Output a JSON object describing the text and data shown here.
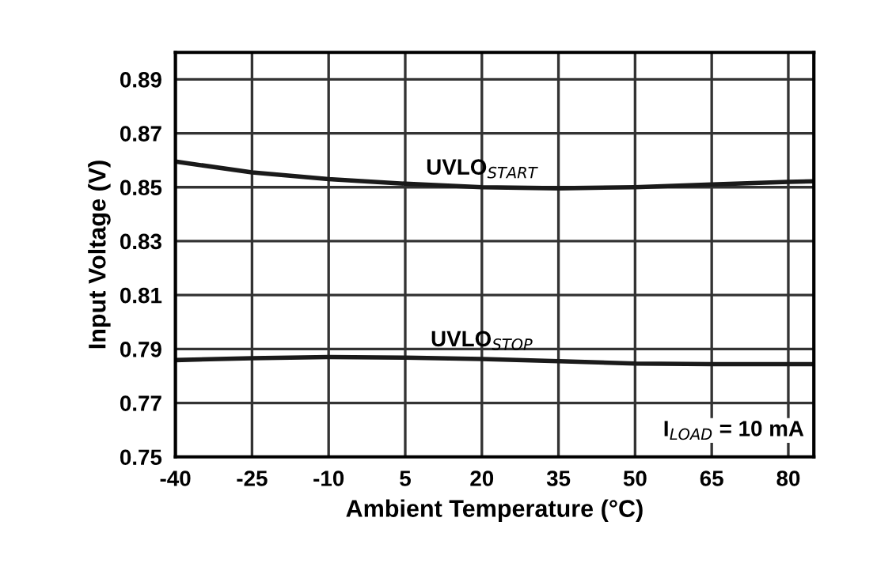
{
  "chart_data": {
    "type": "line",
    "xlabel": "Ambient Temperature (°C)",
    "ylabel": "Input Voltage (V)",
    "x": [
      -40,
      -25,
      -10,
      5,
      20,
      35,
      50,
      65,
      80,
      85
    ],
    "series": [
      {
        "name": "UVLO$_{START}$",
        "color": "#1a1a1a",
        "values": [
          0.8595,
          0.8555,
          0.853,
          0.8513,
          0.85,
          0.8496,
          0.85,
          0.851,
          0.852,
          0.8522
        ]
      },
      {
        "name": "UVLO$_{STOP}$",
        "color": "#1a1a1a",
        "values": [
          0.7859,
          0.7866,
          0.787,
          0.7868,
          0.7863,
          0.7855,
          0.7846,
          0.7844,
          0.7844,
          0.7844
        ]
      }
    ],
    "xlim": [
      -40,
      85
    ],
    "xticks": [
      -40,
      -25,
      -10,
      5,
      20,
      35,
      50,
      65,
      80
    ],
    "ylim": [
      0.75,
      0.9
    ],
    "yticks": [
      0.75,
      0.77,
      0.79,
      0.81,
      0.83,
      0.85,
      0.87,
      0.89
    ],
    "grid": true,
    "legend": false,
    "marker": "none",
    "line_style": "solid",
    "annotations": [
      "I$_{LOAD}$ = 10 mA"
    ]
  }
}
